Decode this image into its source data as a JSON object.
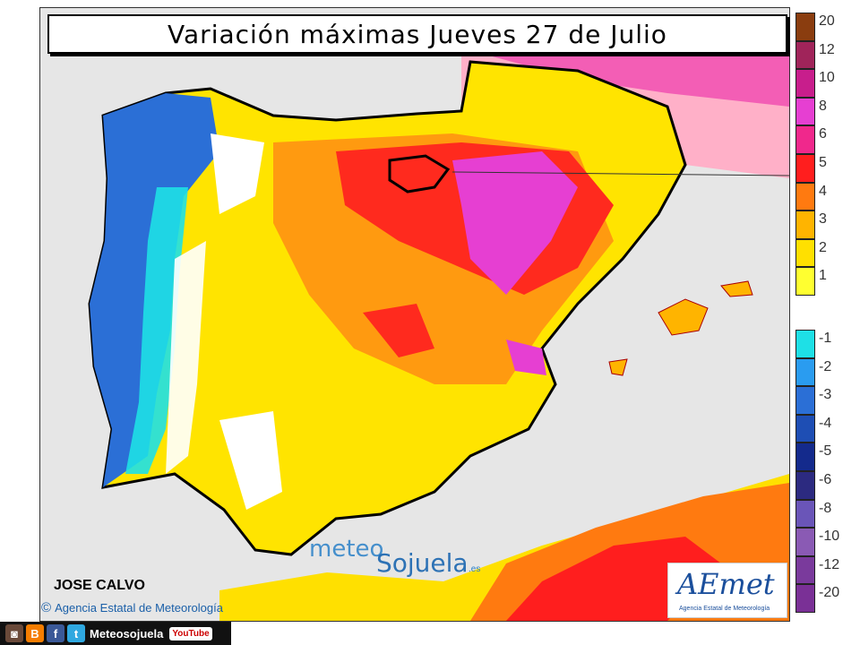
{
  "title": "Variación máximas Jueves 27 de Julio",
  "author": "JOSE CALVO",
  "agency_credit": "Agencia Estatal de Meteorología",
  "watermark": {
    "part_a": "meteo",
    "part_b": "Sojuela",
    "suffix": ".es"
  },
  "logo": {
    "wordmark": "AEmet",
    "subtitle": "Agencia Estatal de Meteorología"
  },
  "social": {
    "handle": "Meteosojuela",
    "youtube": "YouTube"
  },
  "legend": {
    "positive": [
      {
        "label": "20",
        "color": "#8a3d0f"
      },
      {
        "label": "12",
        "color": "#a0245a"
      },
      {
        "label": "10",
        "color": "#c81e8c"
      },
      {
        "label": "8",
        "color": "#e63fd2"
      },
      {
        "label": "6",
        "color": "#f0288c"
      },
      {
        "label": "5",
        "color": "#ff1e1e"
      },
      {
        "label": "4",
        "color": "#ff7a10"
      },
      {
        "label": "3",
        "color": "#ffb400"
      },
      {
        "label": "2",
        "color": "#ffe000"
      },
      {
        "label": "1",
        "color": "#ffff30"
      }
    ],
    "negative": [
      {
        "label": "-1",
        "color": "#1ee0e6"
      },
      {
        "label": "-2",
        "color": "#2a9cf0"
      },
      {
        "label": "-3",
        "color": "#2b6fd6"
      },
      {
        "label": "-4",
        "color": "#1e4eb4"
      },
      {
        "label": "-5",
        "color": "#142a8c"
      },
      {
        "label": "-6",
        "color": "#2c2a80"
      },
      {
        "label": "-8",
        "color": "#6a55b8"
      },
      {
        "label": "-10",
        "color": "#8a5ab4"
      },
      {
        "label": "-12",
        "color": "#7a3a9c"
      },
      {
        "label": "-20",
        "color": "#7a3096"
      }
    ]
  }
}
